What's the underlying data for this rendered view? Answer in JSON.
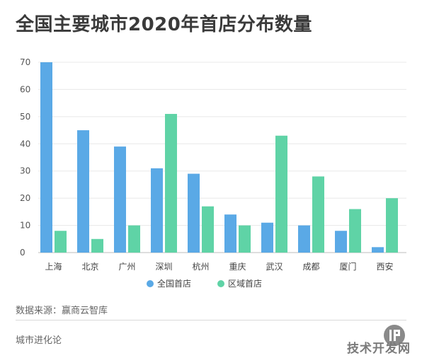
{
  "title": "全国主要城市2020年首店分布数量",
  "chart_data": {
    "type": "bar",
    "title": "全国主要城市2020年首店分布数量",
    "categories": [
      "上海",
      "北京",
      "广州",
      "深圳",
      "杭州",
      "重庆",
      "武汉",
      "成都",
      "厦门",
      "西安"
    ],
    "series": [
      {
        "name": "全国首店",
        "color": "#5aa9e6",
        "values": [
          70,
          45,
          39,
          31,
          29,
          14,
          11,
          10,
          8,
          2
        ]
      },
      {
        "name": "区域首店",
        "color": "#5fd3a6",
        "values": [
          8,
          5,
          10,
          51,
          17,
          10,
          43,
          28,
          16,
          20
        ]
      }
    ],
    "yticks": [
      0,
      10,
      20,
      30,
      40,
      50,
      60,
      70
    ],
    "ylim": [
      0,
      70
    ],
    "grid": true,
    "legend_position": "bottom"
  },
  "source_text": "数据来源：赢商云智库",
  "footer_left": "城市进化论",
  "watermark": "技术开发网"
}
